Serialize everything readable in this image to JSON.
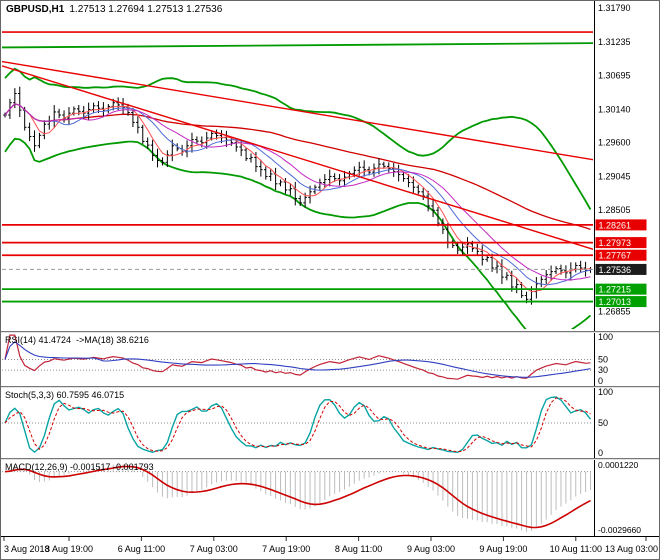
{
  "title": {
    "symbol_period": "GBPUSD,H1",
    "ohlc": "1.27513 1.27694 1.27513 1.27536"
  },
  "colors": {
    "background": "#ffffff",
    "bars": "#000000",
    "band_green": "#009a00",
    "line_red": "#e80000",
    "support_green": "#00a000",
    "tag_red": "#e80000",
    "tag_green": "#00a000",
    "tag_current": "#1c1c1c",
    "rsi": "#c22438",
    "rsi_ma": "#3040c0",
    "stoch": "#0aa3a3",
    "stoch_signal": "#d40000",
    "macd_hist": "#bdbdbd",
    "macd_signal": "#cc0000",
    "ma_fast": "#ff4d4d",
    "ma_mid": "#4f6bd8",
    "ma_slow": "#c228c2",
    "ma_long": "#d00000",
    "grid_dotted": "#909090",
    "axis_text": "#000000"
  },
  "chart_data": [
    {
      "id": "price",
      "type": "line",
      "title": "GBPUSD,H1",
      "ohlc_display": "1.27513 1.27694 1.27513 1.27536",
      "x_labels": [
        "3 Aug 2018",
        "3 Aug 19:00",
        "6 Aug 11:00",
        "7 Aug 03:00",
        "7 Aug 19:00",
        "8 Aug 11:00",
        "9 Aug 03:00",
        "9 Aug 19:00",
        "10 Aug 11:00",
        "13 Aug 03:00"
      ],
      "ylim": [
        1.2655,
        1.3189
      ],
      "y_ticks": [
        {
          "v": 1.3179,
          "label": "1.31790"
        },
        {
          "v": 1.31235,
          "label": "1.31235"
        },
        {
          "v": 1.30695,
          "label": "1.30695"
        },
        {
          "v": 1.3014,
          "label": "1.30140"
        },
        {
          "v": 1.296,
          "label": "1.29600"
        },
        {
          "v": 1.29045,
          "label": "1.29045"
        },
        {
          "v": 1.28505,
          "label": "1.28505"
        },
        {
          "v": 1.26855,
          "label": "1.26855"
        }
      ],
      "levels": {
        "resistance": [
          {
            "v": 1.28261,
            "label": "1.28261"
          },
          {
            "v": 1.27973,
            "label": "1.27973"
          },
          {
            "v": 1.27767,
            "label": "1.27767"
          }
        ],
        "support": [
          {
            "v": 1.27215,
            "label": "1.27215"
          },
          {
            "v": 1.27013,
            "label": "1.27013"
          }
        ],
        "current": {
          "v": 1.27536,
          "label": "1.27536"
        },
        "horizontal_red": 1.314,
        "horizontal_green": [
          1.3115,
          1.3122
        ],
        "trendlines_red": [
          [
            1.3092,
            1.2932
          ],
          [
            1.3085,
            1.2786
          ]
        ]
      },
      "overlays": {
        "bb_period": 34,
        "bb_dev": 2.4,
        "ma_periods": [
          5,
          10,
          15,
          55
        ]
      },
      "series": [
        {
          "name": "close",
          "values": [
            1.3005,
            1.3025,
            1.304,
            1.3013,
            1.2985,
            1.297,
            1.2955,
            1.2972,
            1.299,
            1.2995,
            1.301,
            1.3005,
            1.3,
            1.3008,
            1.3015,
            1.3011,
            1.3008,
            1.3014,
            1.302,
            1.3016,
            1.3012,
            1.3019,
            1.3025,
            1.30215,
            1.3018,
            1.3009,
            1.2993,
            1.2985,
            1.2962,
            1.2956,
            1.2939,
            1.2931,
            1.2928,
            1.294,
            1.2955,
            1.295,
            1.2945,
            1.2955,
            1.2965,
            1.29625,
            1.296,
            1.29675,
            1.2975,
            1.29715,
            1.2968,
            1.2964,
            1.296,
            1.2953,
            1.2948,
            1.2934,
            1.2936,
            1.2921,
            1.2916,
            1.2905,
            1.2909,
            1.2893,
            1.2896,
            1.2883,
            1.2885,
            1.2869,
            1.2862,
            1.2871,
            1.288,
            1.28875,
            1.2895,
            1.29,
            1.2905,
            1.29015,
            1.2898,
            1.2904,
            1.291,
            1.2915,
            1.292,
            1.2916,
            1.2912,
            1.29185,
            1.2925,
            1.29215,
            1.2918,
            1.2913,
            1.2908,
            1.29015,
            1.2895,
            1.28875,
            1.288,
            1.2873,
            1.2857,
            1.285,
            1.2829,
            1.2819,
            1.2798,
            1.27925,
            1.2785,
            1.279,
            1.2795,
            1.27875,
            1.2783,
            1.277,
            1.2773,
            1.2756,
            1.2759,
            1.2741,
            1.2744,
            1.2725,
            1.2729,
            1.2711,
            1.2705,
            1.27175,
            1.273,
            1.27375,
            1.2745,
            1.275,
            1.2755,
            1.27515,
            1.2748,
            1.2754,
            1.276,
            1.2756,
            1.2752,
            1.27536
          ]
        }
      ]
    },
    {
      "id": "rsi",
      "type": "line",
      "label": "RSI(14) 41.4724",
      "label2": "->MA(18) 38.6216",
      "period": 14,
      "ma_period": 18,
      "current": 41.4724,
      "ma_current": 38.6216,
      "ylim": [
        0,
        100
      ],
      "guide_levels": [
        50,
        30
      ],
      "y_ticks": [
        {
          "v": 100,
          "label": "100"
        },
        {
          "v": 50,
          "label": "50"
        },
        {
          "v": 30,
          "label": "30"
        },
        {
          "v": 0,
          "label": "0"
        }
      ]
    },
    {
      "id": "stoch",
      "type": "line",
      "label": "Stoch(5,3,3) 60.7595 46.0715",
      "k_period": 5,
      "d_period": 3,
      "slowing": 3,
      "current_k": 60.7595,
      "current_d": 46.0715,
      "ylim": [
        0,
        100
      ],
      "guide_levels": [
        50
      ],
      "y_ticks": [
        {
          "v": 100,
          "label": "100"
        },
        {
          "v": 50,
          "label": "50"
        },
        {
          "v": 0,
          "label": "0"
        }
      ]
    },
    {
      "id": "macd",
      "type": "line",
      "label": "MACD(12,26,9) -0.001517 -0.001793",
      "fast": 12,
      "slow": 26,
      "signal": 9,
      "current_macd": -0.001517,
      "current_signal": -0.001793,
      "y_tick_top": "0.0001220",
      "y_tick_bottom": "-0.0029660"
    }
  ]
}
